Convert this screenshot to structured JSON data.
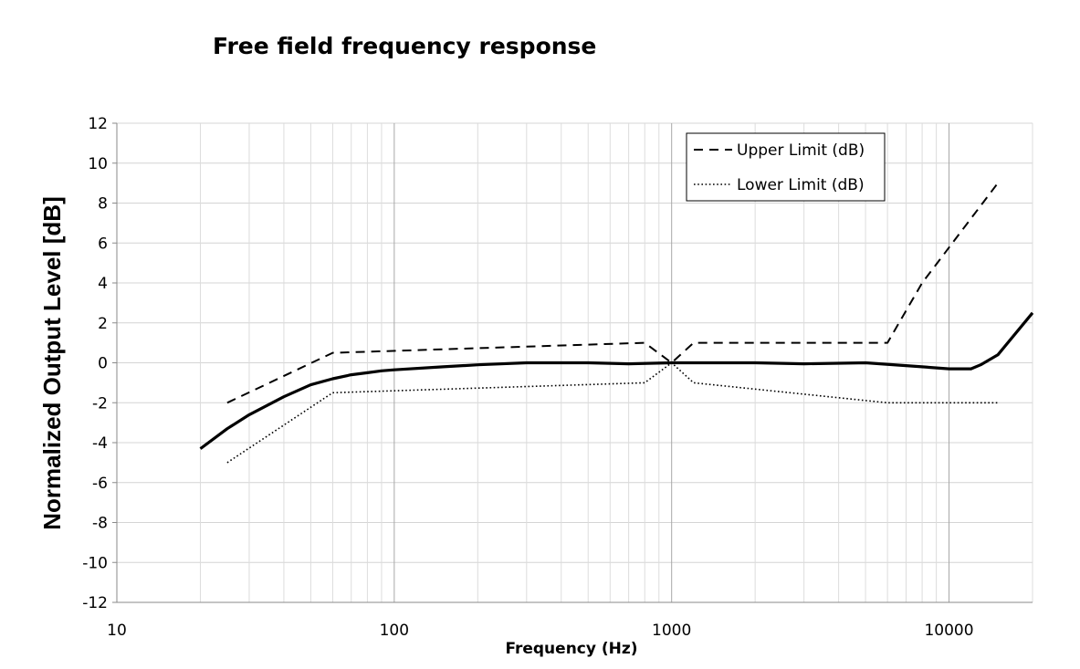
{
  "chart_data": {
    "type": "line",
    "title": "Free field frequency response",
    "xlabel": "Frequency (Hz)",
    "ylabel": "Normalized Output Level [dB]",
    "xscale": "log",
    "xlim": [
      10,
      20000
    ],
    "ylim": [
      -12,
      12
    ],
    "x_ticks": [
      "10",
      "100",
      "1000",
      "10000"
    ],
    "y_ticks": [
      "12",
      "10",
      "8",
      "6",
      "4",
      "2",
      "0",
      "-2",
      "-4",
      "-6",
      "-8",
      "-10",
      "-12"
    ],
    "grid": true,
    "legend_position": "top-right",
    "series": [
      {
        "name": "",
        "style": "solid",
        "x": [
          20,
          25,
          30,
          40,
          50,
          60,
          70,
          80,
          90,
          100,
          150,
          200,
          300,
          500,
          700,
          1000,
          1500,
          2000,
          3000,
          5000,
          8000,
          10000,
          12000,
          13000,
          15000,
          20000
        ],
        "y": [
          -4.3,
          -3.3,
          -2.6,
          -1.7,
          -1.1,
          -0.8,
          -0.6,
          -0.5,
          -0.4,
          -0.35,
          -0.2,
          -0.1,
          0,
          0,
          -0.05,
          0,
          0,
          0,
          -0.05,
          0,
          -0.2,
          -0.3,
          -0.3,
          -0.1,
          0.4,
          2.5
        ]
      },
      {
        "name": "Upper Limit (dB)",
        "style": "dashed",
        "x": [
          25,
          60,
          800,
          1000,
          1200,
          6000,
          8000,
          15000
        ],
        "y": [
          -2,
          0.5,
          1,
          0,
          1,
          1,
          4,
          9
        ]
      },
      {
        "name": "Lower Limit (dB)",
        "style": "dotted",
        "x": [
          25,
          60,
          800,
          1000,
          1200,
          6000,
          15000
        ],
        "y": [
          -5,
          -1.5,
          -1,
          0,
          -1,
          -2,
          -2
        ]
      }
    ]
  }
}
